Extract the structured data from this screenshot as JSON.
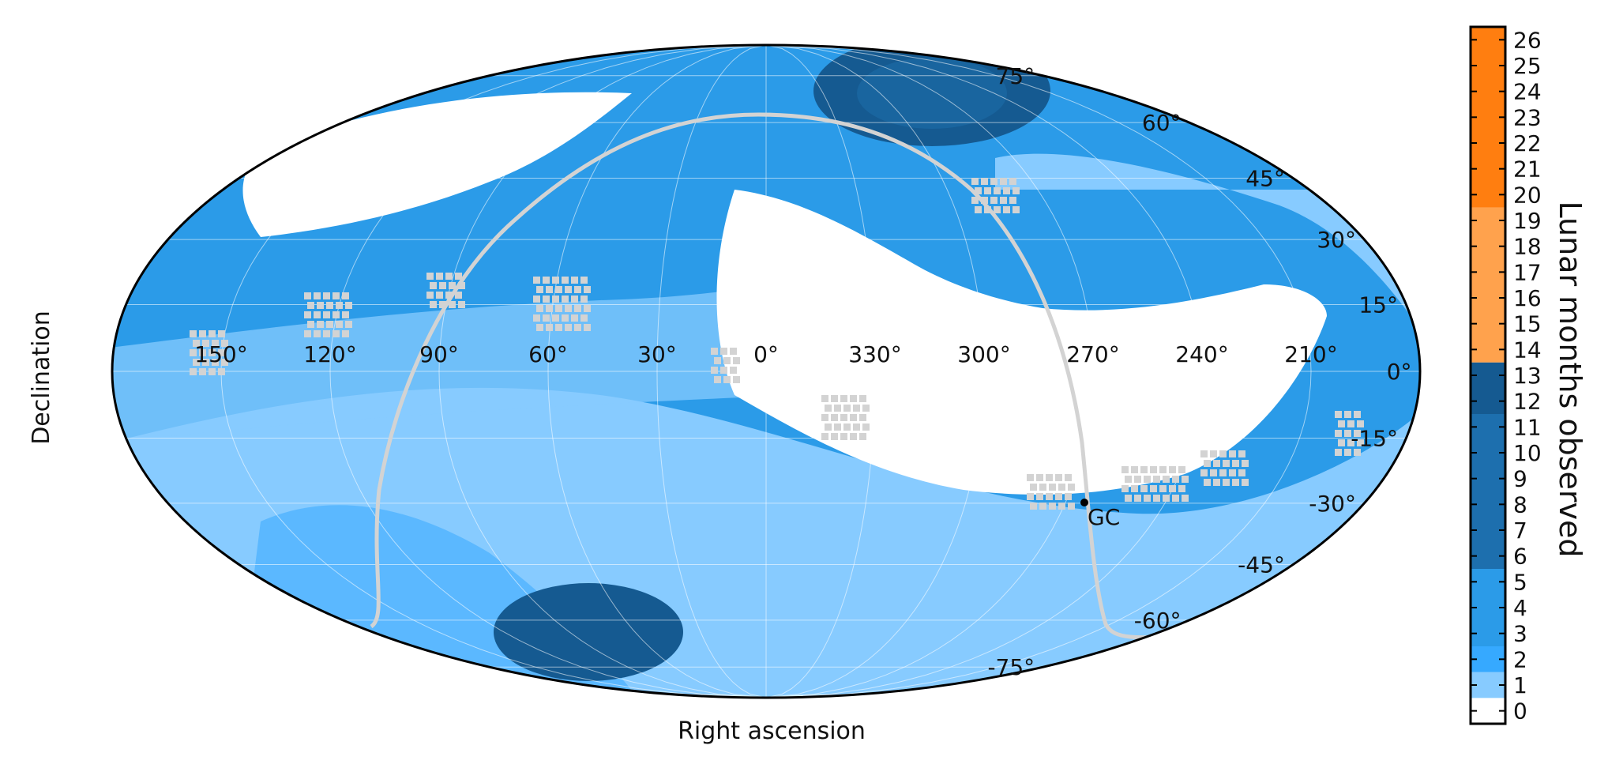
{
  "map": {
    "projection": "mollweide",
    "xlabel": "Right ascension",
    "ylabel": "Declination",
    "ra_ticks": [
      "150°",
      "120°",
      "90°",
      "60°",
      "30°",
      "0°",
      "330°",
      "300°",
      "270°",
      "240°",
      "210°"
    ],
    "dec_ticks": [
      {
        "dec": 75,
        "label": "75°"
      },
      {
        "dec": 60,
        "label": "60°"
      },
      {
        "dec": 45,
        "label": "45°"
      },
      {
        "dec": 30,
        "label": "30°"
      },
      {
        "dec": 15,
        "label": "15°"
      },
      {
        "dec": 0,
        "label": "0°"
      },
      {
        "dec": -15,
        "label": "-15°"
      },
      {
        "dec": -30,
        "label": "-30°"
      },
      {
        "dec": -45,
        "label": "-45°"
      },
      {
        "dec": -60,
        "label": "-60°"
      },
      {
        "dec": -75,
        "label": "-75°"
      }
    ],
    "marker": {
      "label": "GC",
      "ra": 266.4,
      "dec": -28.9
    },
    "colors": {
      "ocean_fill": "#2b9be8",
      "light": "#87cbff",
      "mid": "#36a9ff",
      "dark": "#1d6fae",
      "darkest": "#155a91",
      "galactic_plane": "#d3d3d3",
      "grid": "#ffffff"
    }
  },
  "colorbar": {
    "label": "Lunar months observed",
    "ticks": [
      "0",
      "1",
      "2",
      "3",
      "4",
      "5",
      "6",
      "7",
      "8",
      "9",
      "10",
      "11",
      "12",
      "13",
      "14",
      "15",
      "16",
      "17",
      "18",
      "19",
      "20",
      "21",
      "22",
      "23",
      "24",
      "25",
      "26"
    ],
    "bands": [
      {
        "from": 0,
        "to": 1,
        "color": "#ffffff"
      },
      {
        "from": 1,
        "to": 2,
        "color": "#87cbff"
      },
      {
        "from": 2,
        "to": 3,
        "color": "#36a9ff"
      },
      {
        "from": 3,
        "to": 6,
        "color": "#2b9be8"
      },
      {
        "from": 6,
        "to": 12,
        "color": "#1d6fae"
      },
      {
        "from": 12,
        "to": 14,
        "color": "#155a91"
      },
      {
        "from": 14,
        "to": 20,
        "color": "#ffa24d"
      },
      {
        "from": 20,
        "to": 27,
        "color": "#ff7e10"
      }
    ]
  }
}
